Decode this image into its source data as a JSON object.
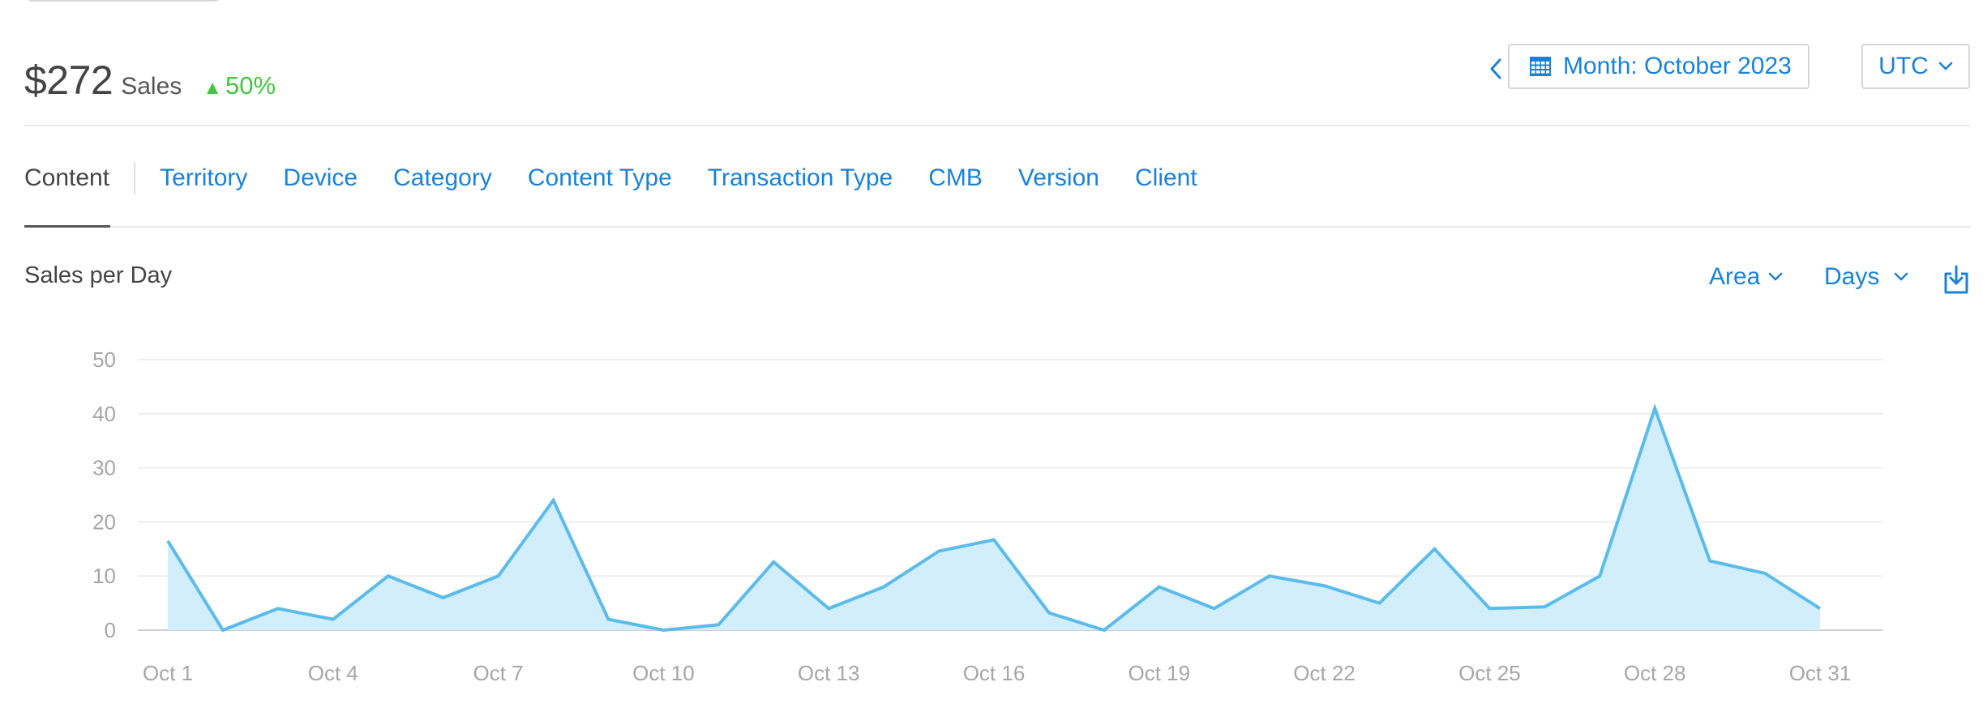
{
  "summary": {
    "amount": "$272",
    "label": "Sales",
    "change": "50%",
    "change_color": "#43c443"
  },
  "header": {
    "period_label": "Month: October 2023",
    "timezone": "UTC",
    "icons": {
      "prev": "chevron-left-icon",
      "calendar": "calendar-icon",
      "dropdown": "chevron-down-icon"
    }
  },
  "tabs": [
    {
      "label": "Content",
      "active": true
    },
    {
      "label": "Territory"
    },
    {
      "label": "Device"
    },
    {
      "label": "Category"
    },
    {
      "label": "Content Type"
    },
    {
      "label": "Transaction Type"
    },
    {
      "label": "CMB"
    },
    {
      "label": "Version"
    },
    {
      "label": "Client"
    }
  ],
  "chart_controls": {
    "title": "Sales per Day",
    "chart_type_label": "Area",
    "granularity_label": "Days",
    "download_icon": "download-icon"
  },
  "chart_data": {
    "type": "area",
    "title": "Sales per Day",
    "xlabel": "",
    "ylabel": "",
    "ylim": [
      0,
      50
    ],
    "yticks": [
      0,
      10,
      20,
      30,
      40,
      50
    ],
    "grid": true,
    "x": [
      "Oct 1",
      "Oct 2",
      "Oct 3",
      "Oct 4",
      "Oct 5",
      "Oct 6",
      "Oct 7",
      "Oct 8",
      "Oct 9",
      "Oct 10",
      "Oct 11",
      "Oct 12",
      "Oct 13",
      "Oct 14",
      "Oct 15",
      "Oct 16",
      "Oct 17",
      "Oct 18",
      "Oct 19",
      "Oct 20",
      "Oct 21",
      "Oct 22",
      "Oct 23",
      "Oct 24",
      "Oct 25",
      "Oct 26",
      "Oct 27",
      "Oct 28",
      "Oct 29",
      "Oct 30",
      "Oct 31"
    ],
    "xtick_labels": [
      "Oct 1",
      "Oct 4",
      "Oct 7",
      "Oct 10",
      "Oct 13",
      "Oct 16",
      "Oct 19",
      "Oct 22",
      "Oct 25",
      "Oct 28",
      "Oct 31"
    ],
    "values": [
      16.5,
      0,
      4,
      2,
      10,
      6,
      10,
      24,
      2,
      0,
      1,
      12.6,
      4,
      8,
      14.6,
      16.7,
      3.2,
      0,
      8,
      4,
      10,
      8.2,
      5,
      15,
      4,
      4.3,
      10,
      41,
      12.8,
      10.5,
      4
    ],
    "line_color": "#5bbbe9",
    "fill_color": "#d3eefb"
  }
}
